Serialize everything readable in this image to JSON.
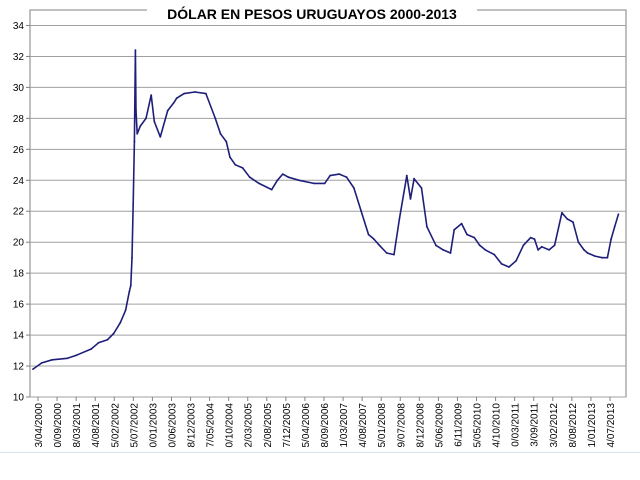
{
  "chart_data": {
    "type": "line",
    "title": "DÓLAR EN PESOS URUGUAYOS 2000-2013",
    "xlabel": "",
    "ylabel": "",
    "ylim": [
      10,
      35
    ],
    "yticks": [
      10,
      12,
      14,
      16,
      18,
      20,
      22,
      24,
      26,
      28,
      30,
      32,
      34
    ],
    "grid": true,
    "legend": "none",
    "line_color": "#1f1f7a",
    "x_tick_labels": [
      "3/04/2000",
      "0/09/2000",
      "8/03/2001",
      "4/08/2001",
      "5/02/2002",
      "5/07/2002",
      "0/01/2003",
      "0/06/2003",
      "8/12/2003",
      "7/05/2004",
      "0/10/2004",
      "2/03/2005",
      "2/08/2005",
      "7/12/2005",
      "5/04/2006",
      "8/09/2006",
      "1/03/2007",
      "4/08/2007",
      "5/01/2008",
      "9/07/2008",
      "8/12/2008",
      "5/06/2009",
      "6/11/2009",
      "5/05/2010",
      "4/10/2010",
      "0/03/2011",
      "3/09/2011",
      "3/02/2012",
      "8/08/2012",
      "1/01/2013",
      "4/07/2013"
    ],
    "x": [
      "2000-04-03",
      "2000-06-15",
      "2000-09-10",
      "2001-01-15",
      "2001-04-01",
      "2001-08-01",
      "2001-10-01",
      "2001-12-15",
      "2002-02-05",
      "2002-04-01",
      "2002-05-15",
      "2002-06-15",
      "2002-06-28",
      "2002-07-08",
      "2002-07-18",
      "2002-07-28",
      "2002-08-05",
      "2002-08-10",
      "2002-08-20",
      "2002-09-15",
      "2002-11-01",
      "2002-12-15",
      "2003-01-10",
      "2003-03-01",
      "2003-05-01",
      "2003-06-20",
      "2003-07-15",
      "2003-09-15",
      "2003-12-15",
      "2004-03-15",
      "2004-06-01",
      "2004-07-15",
      "2004-09-01",
      "2004-10-01",
      "2004-11-15",
      "2005-01-15",
      "2005-03-15",
      "2005-06-01",
      "2005-09-15",
      "2005-11-01",
      "2005-12-15",
      "2006-02-01",
      "2006-05-01",
      "2006-09-01",
      "2006-12-01",
      "2007-01-15",
      "2007-04-01",
      "2007-06-01",
      "2007-08-01",
      "2007-10-01",
      "2007-12-01",
      "2008-01-15",
      "2008-03-01",
      "2008-05-01",
      "2008-07-01",
      "2008-08-15",
      "2008-10-15",
      "2008-11-15",
      "2008-12-15",
      "2009-02-15",
      "2009-04-01",
      "2009-06-15",
      "2009-08-15",
      "2009-10-15",
      "2009-11-15",
      "2010-01-15",
      "2010-03-01",
      "2010-05-01",
      "2010-06-15",
      "2010-08-01",
      "2010-10-15",
      "2010-12-15",
      "2011-02-15",
      "2011-04-15",
      "2011-06-15",
      "2011-08-15",
      "2011-09-15",
      "2011-10-15",
      "2011-11-15",
      "2012-01-15",
      "2012-03-01",
      "2012-05-01",
      "2012-06-15",
      "2012-08-01",
      "2012-09-15",
      "2012-11-01",
      "2012-12-01",
      "2013-02-01",
      "2013-04-01",
      "2013-05-15",
      "2013-06-15",
      "2013-07-15",
      "2013-08-15"
    ],
    "values": [
      11.8,
      12.2,
      12.4,
      12.5,
      12.7,
      13.1,
      13.5,
      13.7,
      14.1,
      14.8,
      15.6,
      16.8,
      17.2,
      19.0,
      22.5,
      26.5,
      32.4,
      28.5,
      27.0,
      27.5,
      28.0,
      29.5,
      27.8,
      26.8,
      28.5,
      29.0,
      29.3,
      29.6,
      29.7,
      29.6,
      28.0,
      27.0,
      26.5,
      25.5,
      25.0,
      24.8,
      24.2,
      23.8,
      23.4,
      24.0,
      24.4,
      24.2,
      24.0,
      23.8,
      23.8,
      24.3,
      24.4,
      24.2,
      23.5,
      22.0,
      20.5,
      20.2,
      19.8,
      19.3,
      19.2,
      21.5,
      24.3,
      22.8,
      24.1,
      23.5,
      21.0,
      19.8,
      19.5,
      19.3,
      20.8,
      21.2,
      20.5,
      20.3,
      19.8,
      19.5,
      19.2,
      18.6,
      18.4,
      18.8,
      19.8,
      20.3,
      20.2,
      19.5,
      19.7,
      19.5,
      19.8,
      21.9,
      21.5,
      21.3,
      20.0,
      19.5,
      19.3,
      19.1,
      19.0,
      19.0,
      20.2,
      21.0,
      21.8
    ]
  }
}
